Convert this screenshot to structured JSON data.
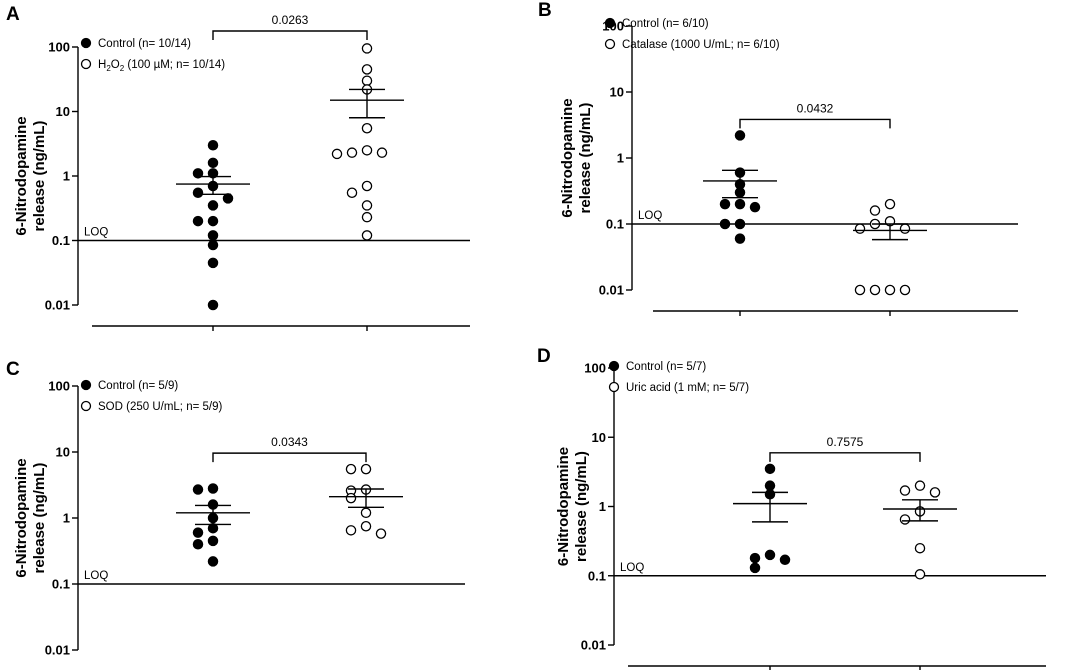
{
  "figure": {
    "panels": [
      "A",
      "B",
      "C",
      "D"
    ]
  },
  "chart_data": [
    {
      "panel": "A",
      "type": "scatter",
      "ylabel": "6-Nitrodopamine release (ng/mL)",
      "yscale": "log",
      "ylim": [
        0.01,
        100
      ],
      "yticks": [
        "100",
        "10",
        "1",
        "0.1",
        "0.01"
      ],
      "loq": 0.1,
      "loq_label": "LOQ",
      "p_value": "0.0263",
      "series": [
        {
          "name": "Control",
          "legend": "Control (n= 10/14)",
          "marker": "filled",
          "values": [
            3.0,
            1.6,
            1.1,
            1.1,
            0.7,
            0.55,
            0.35,
            0.45,
            0.2,
            0.2,
            0.12,
            0.085,
            0.045,
            0.01
          ],
          "mean": 0.75,
          "sem_upper": 0.98,
          "sem_lower": 0.52
        },
        {
          "name": "H2O2",
          "legend": "H₂O₂ (100 µM; n= 10/14)",
          "marker": "open",
          "values": [
            95,
            45,
            30,
            22,
            5.5,
            2.5,
            2.3,
            2.3,
            2.2,
            0.7,
            0.55,
            0.35,
            0.23,
            0.12
          ],
          "mean": 15,
          "sem_upper": 22,
          "sem_lower": 8
        }
      ]
    },
    {
      "panel": "B",
      "type": "scatter",
      "ylabel": "6-Nitrodopamine release (ng/mL)",
      "yscale": "log",
      "ylim": [
        0.01,
        100
      ],
      "yticks": [
        "100",
        "10",
        "1",
        "0.1",
        "0.01"
      ],
      "loq": 0.1,
      "loq_label": "LOQ",
      "p_value": "0.0432",
      "series": [
        {
          "name": "Control",
          "legend": "Control (n= 6/10)",
          "marker": "filled",
          "values": [
            2.2,
            0.6,
            0.4,
            0.3,
            0.2,
            0.2,
            0.18,
            0.1,
            0.1,
            0.06
          ],
          "mean": 0.45,
          "sem_upper": 0.65,
          "sem_lower": 0.25
        },
        {
          "name": "Catalase",
          "legend": "Catalase (1000 U/mL; n= 6/10)",
          "marker": "open",
          "values": [
            0.2,
            0.16,
            0.11,
            0.1,
            0.085,
            0.085,
            0.01,
            0.01,
            0.01,
            0.01
          ],
          "mean": 0.08,
          "sem_upper": 0.1,
          "sem_lower": 0.058
        }
      ]
    },
    {
      "panel": "C",
      "type": "scatter",
      "ylabel": "6-Nitrodopamine release (ng/mL)",
      "yscale": "log",
      "ylim": [
        0.01,
        100
      ],
      "yticks": [
        "100",
        "10",
        "1",
        "0.1",
        "0.01"
      ],
      "loq": 0.1,
      "loq_label": "LOQ",
      "p_value": "0.0343",
      "series": [
        {
          "name": "Control",
          "legend": "Control (n= 5/9)",
          "marker": "filled",
          "values": [
            2.8,
            2.7,
            1.6,
            1.0,
            0.7,
            0.6,
            0.45,
            0.4,
            0.22
          ],
          "mean": 1.2,
          "sem_upper": 1.55,
          "sem_lower": 0.8
        },
        {
          "name": "SOD",
          "legend": "SOD (250 U/mL; n= 5/9)",
          "marker": "open",
          "values": [
            5.5,
            5.5,
            2.7,
            2.6,
            2.0,
            1.2,
            0.75,
            0.65,
            0.58
          ],
          "mean": 2.1,
          "sem_upper": 2.75,
          "sem_lower": 1.45
        }
      ]
    },
    {
      "panel": "D",
      "type": "scatter",
      "ylabel": "6-Nitrodopamine release (ng/mL)",
      "yscale": "log",
      "ylim": [
        0.01,
        100
      ],
      "yticks": [
        "100",
        "10",
        "1",
        "0.1",
        "0.01"
      ],
      "loq": 0.1,
      "loq_label": "LOQ",
      "p_value": "0.7575",
      "series": [
        {
          "name": "Control",
          "legend": "Control (n= 5/7)",
          "marker": "filled",
          "values": [
            3.5,
            2.0,
            1.5,
            0.2,
            0.18,
            0.17,
            0.13
          ],
          "mean": 1.1,
          "sem_upper": 1.6,
          "sem_lower": 0.6
        },
        {
          "name": "Uric acid",
          "legend": "Uric acid (1 mM; n= 5/7)",
          "marker": "open",
          "values": [
            2.0,
            1.7,
            1.6,
            0.85,
            0.65,
            0.25,
            0.105
          ],
          "mean": 0.92,
          "sem_upper": 1.25,
          "sem_lower": 0.62
        }
      ]
    }
  ]
}
